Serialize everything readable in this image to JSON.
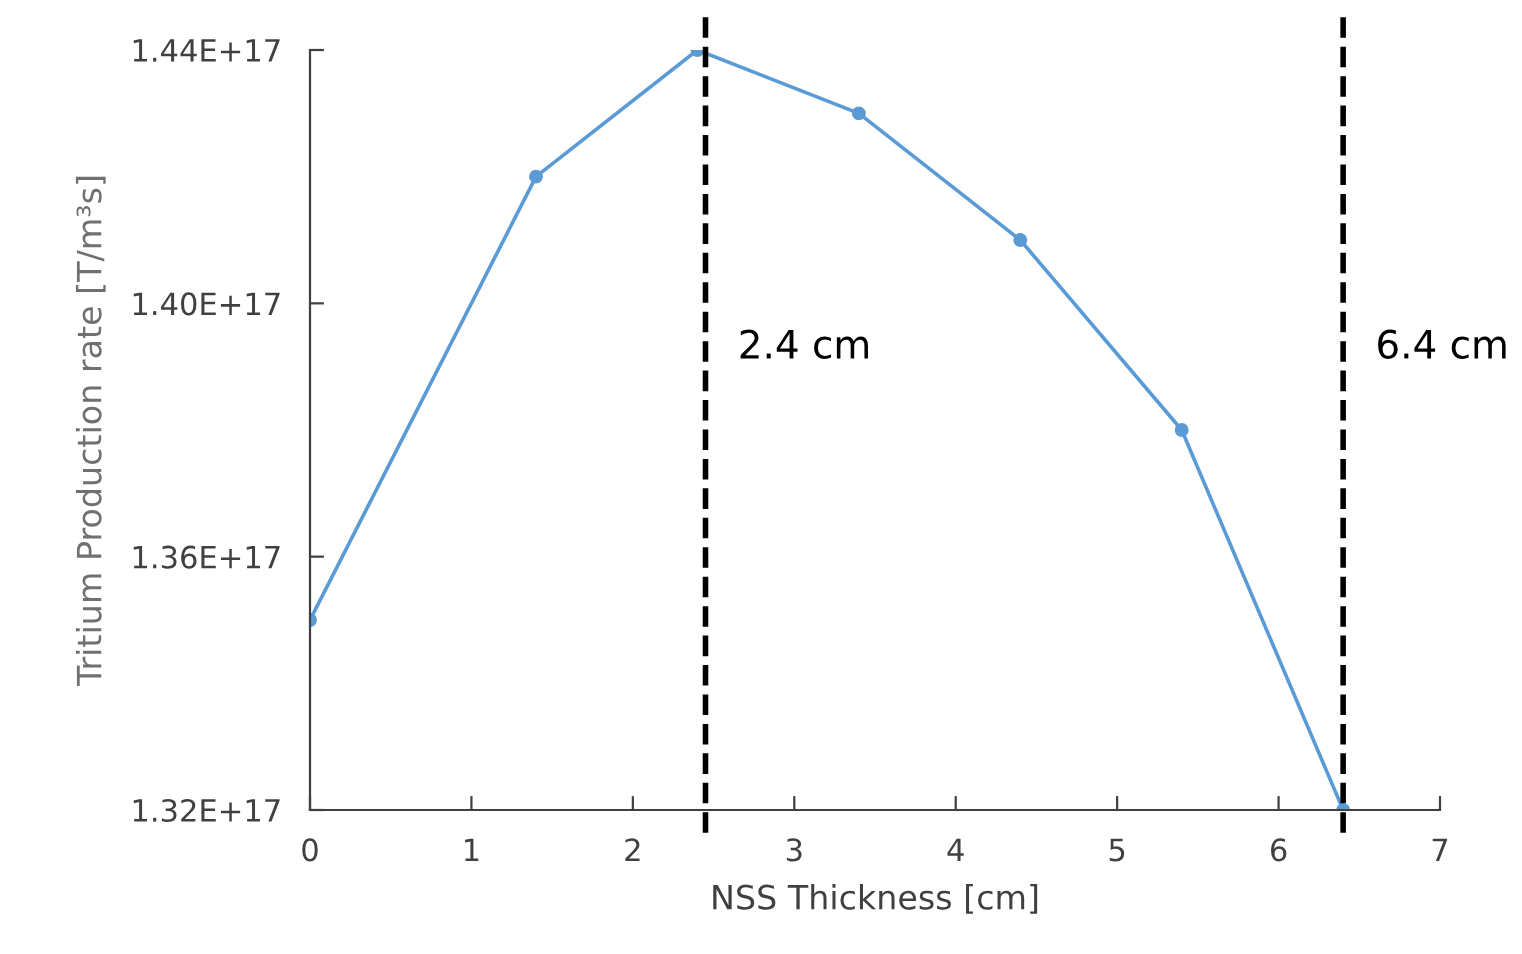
{
  "chart_data": {
    "type": "line",
    "xlabel": "NSS Thickness [cm]",
    "ylabel": "Tritium Production rate [T/m³s]",
    "x": [
      0,
      1.4,
      2.4,
      3.4,
      4.4,
      5.4,
      6.4
    ],
    "series": [
      {
        "color": "#5b9bd5",
        "values": [
          1.35e+17,
          1.42e+17,
          1.44e+17,
          1.43e+17,
          1.41e+17,
          1.38e+17,
          1.32e+17
        ]
      }
    ],
    "xlim": [
      0,
      7
    ],
    "xticks": [
      0,
      1,
      2,
      3,
      4,
      5,
      6,
      7
    ],
    "ylim": [
      1.32e+17,
      1.44e+17
    ],
    "yticks": [
      {
        "value": 1.32e+17,
        "label": "1.32E+17"
      },
      {
        "value": 1.36e+17,
        "label": "1.36E+17"
      },
      {
        "value": 1.4e+17,
        "label": "1.40E+17"
      },
      {
        "value": 1.44e+17,
        "label": "1.44E+17"
      }
    ],
    "ref_lines": [
      {
        "axis": "x",
        "value": 2.45,
        "label": "2.4 cm",
        "color": "#000000",
        "line_style": "dashed"
      },
      {
        "axis": "x",
        "value": 6.4,
        "label": "6.4 cm",
        "color": "#000000",
        "line_style": "dashed"
      }
    ],
    "marker": "circle",
    "line_style": "solid",
    "grid": false,
    "legend": false
  }
}
